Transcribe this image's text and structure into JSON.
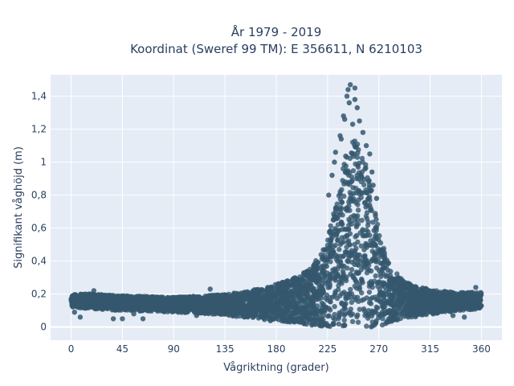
{
  "chart_data": {
    "type": "scatter",
    "title_line1": "År 1979 - 2019",
    "title_line2": "Koordinat (Sweref 99 TM): E 356611, N 6210103",
    "xlabel": "Vågriktning (grader)",
    "ylabel": "Signifikant våghöjd (m)",
    "xlim": [
      -18,
      378
    ],
    "ylim": [
      -0.08,
      1.53
    ],
    "x_ticks": [
      0,
      45,
      90,
      135,
      180,
      225,
      270,
      315,
      360
    ],
    "x_tick_labels": [
      "0",
      "45",
      "90",
      "135",
      "180",
      "225",
      "270",
      "315",
      "360"
    ],
    "y_ticks": [
      0,
      0.2,
      0.4,
      0.6,
      0.8,
      1.0,
      1.2,
      1.4
    ],
    "y_tick_labels": [
      "0",
      "0,2",
      "0,4",
      "0,6",
      "0,8",
      "1",
      "1,2",
      "1,4"
    ],
    "grid": true,
    "marker_color": "#34576e",
    "plot_bg": "#e5ecf6",
    "envelope": {
      "x": [
        0,
        20,
        45,
        90,
        120,
        150,
        170,
        190,
        200,
        210,
        220,
        225,
        230,
        235,
        240,
        245,
        250,
        255,
        260,
        265,
        270,
        275,
        280,
        290,
        300,
        320,
        340,
        360
      ],
      "upper": [
        0.2,
        0.2,
        0.19,
        0.18,
        0.19,
        0.21,
        0.24,
        0.28,
        0.31,
        0.36,
        0.45,
        0.54,
        0.68,
        0.85,
        1.02,
        1.12,
        1.15,
        1.08,
        0.95,
        0.78,
        0.6,
        0.46,
        0.37,
        0.29,
        0.25,
        0.22,
        0.21,
        0.21
      ],
      "lower": [
        0.12,
        0.11,
        0.1,
        0.09,
        0.08,
        0.06,
        0.04,
        0.03,
        0.02,
        0.01,
        0.005,
        0.0,
        0.0,
        0.0,
        0.0,
        0.0,
        0.0,
        0.0,
        0.0,
        0.0,
        0.005,
        0.01,
        0.02,
        0.04,
        0.06,
        0.08,
        0.1,
        0.11
      ]
    },
    "outliers": [
      {
        "x": 245,
        "y": 1.47
      },
      {
        "x": 243,
        "y": 1.44
      },
      {
        "x": 249,
        "y": 1.45
      },
      {
        "x": 242,
        "y": 1.4
      },
      {
        "x": 249,
        "y": 1.38
      },
      {
        "x": 251,
        "y": 1.33
      },
      {
        "x": 244,
        "y": 1.36
      },
      {
        "x": 239,
        "y": 1.28
      },
      {
        "x": 240,
        "y": 1.26
      },
      {
        "x": 253,
        "y": 1.25
      },
      {
        "x": 247,
        "y": 1.23
      },
      {
        "x": 256,
        "y": 1.18
      },
      {
        "x": 236,
        "y": 1.16
      },
      {
        "x": 237,
        "y": 1.14
      },
      {
        "x": 259,
        "y": 1.1
      },
      {
        "x": 262,
        "y": 1.05
      },
      {
        "x": 232,
        "y": 1.06
      },
      {
        "x": 231,
        "y": 1.0
      },
      {
        "x": 264,
        "y": 0.94
      },
      {
        "x": 229,
        "y": 0.92
      },
      {
        "x": 265,
        "y": 0.86
      },
      {
        "x": 268,
        "y": 0.78
      },
      {
        "x": 226,
        "y": 0.8
      },
      {
        "x": 3,
        "y": 0.09
      },
      {
        "x": 8,
        "y": 0.06
      },
      {
        "x": 37,
        "y": 0.05
      },
      {
        "x": 45,
        "y": 0.05
      },
      {
        "x": 63,
        "y": 0.05
      },
      {
        "x": 20,
        "y": 0.22
      },
      {
        "x": 122,
        "y": 0.23
      },
      {
        "x": 55,
        "y": 0.08
      },
      {
        "x": 335,
        "y": 0.07
      },
      {
        "x": 355,
        "y": 0.24
      },
      {
        "x": 110,
        "y": 0.07
      },
      {
        "x": 345,
        "y": 0.06
      }
    ]
  }
}
